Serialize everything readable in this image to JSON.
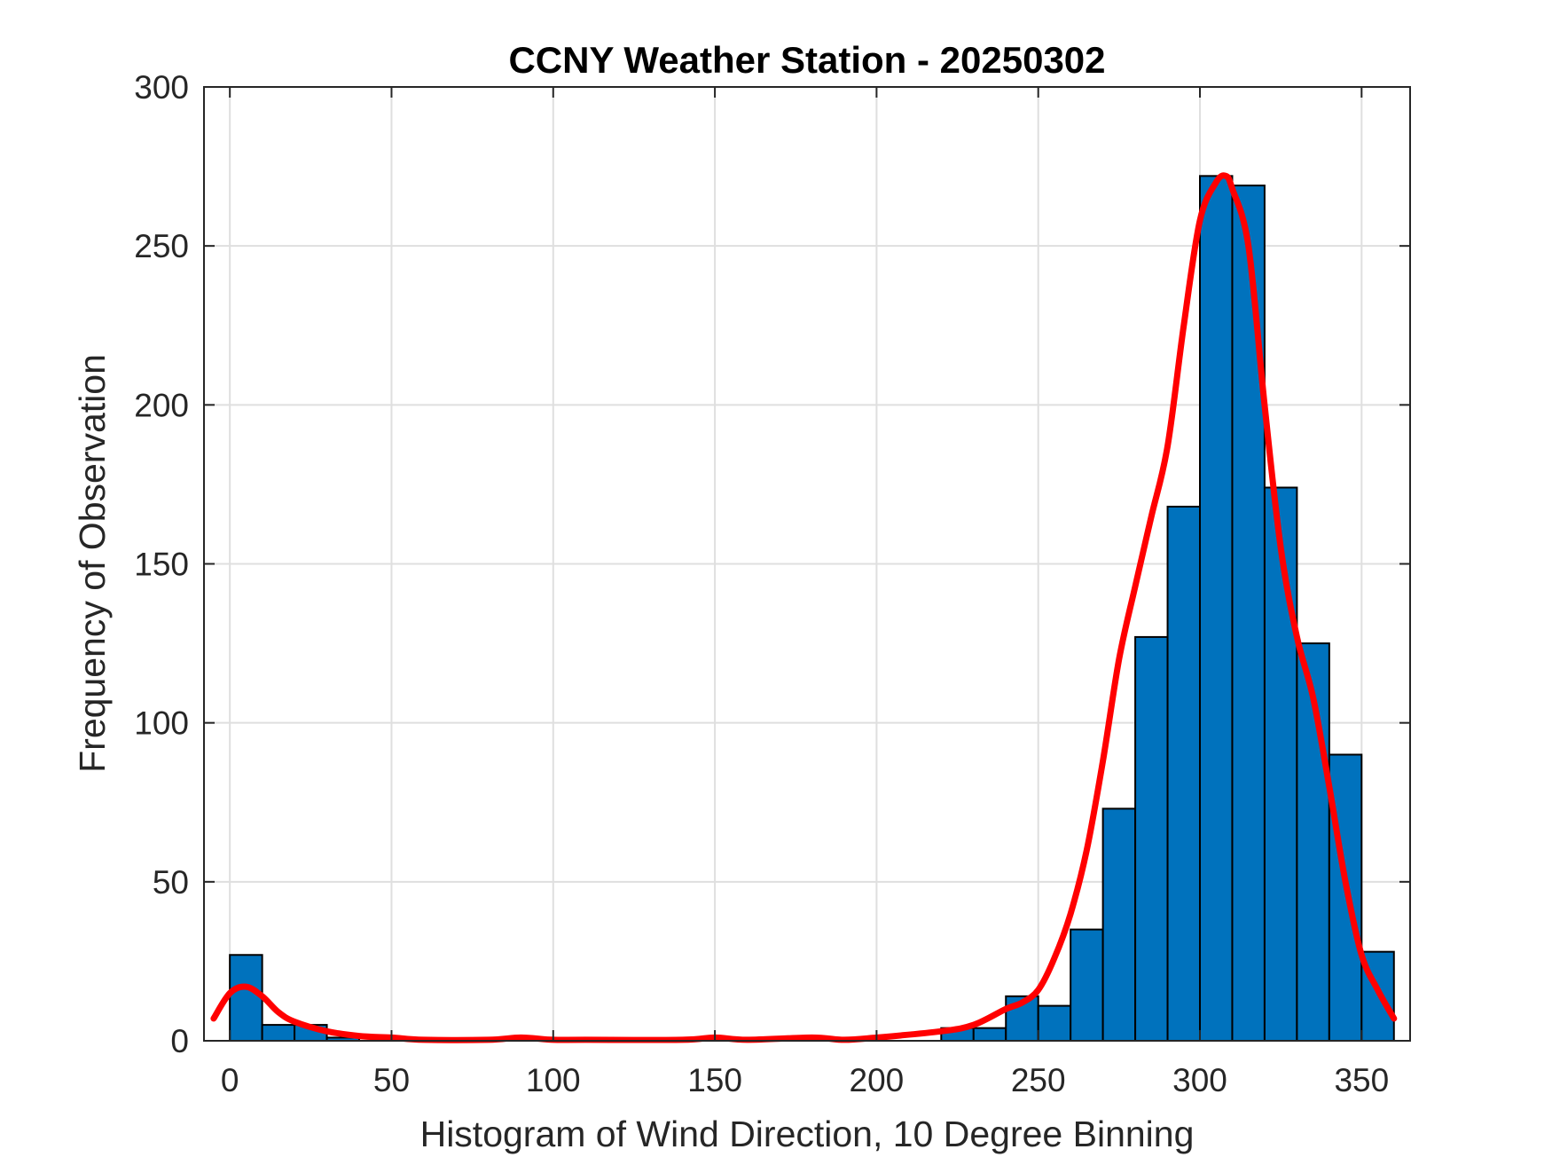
{
  "chart_data": {
    "type": "bar",
    "title": "CCNY Weather Station - 20250302",
    "xlabel": "Histogram of Wind Direction, 10 Degree Binning",
    "ylabel": "Frequency of Observation",
    "xlim": [
      -8,
      365
    ],
    "ylim": [
      0,
      300
    ],
    "xticks": [
      0,
      50,
      100,
      150,
      200,
      250,
      300,
      350
    ],
    "yticks": [
      0,
      50,
      100,
      150,
      200,
      250,
      300
    ],
    "grid": true,
    "bin_width": 10,
    "bins": [
      {
        "start": 0,
        "count": 27
      },
      {
        "start": 10,
        "count": 5
      },
      {
        "start": 20,
        "count": 5
      },
      {
        "start": 30,
        "count": 1
      },
      {
        "start": 220,
        "count": 4
      },
      {
        "start": 230,
        "count": 4
      },
      {
        "start": 240,
        "count": 14
      },
      {
        "start": 250,
        "count": 11
      },
      {
        "start": 260,
        "count": 35
      },
      {
        "start": 270,
        "count": 73
      },
      {
        "start": 280,
        "count": 127
      },
      {
        "start": 290,
        "count": 168
      },
      {
        "start": 300,
        "count": 272
      },
      {
        "start": 310,
        "count": 269
      },
      {
        "start": 320,
        "count": 174
      },
      {
        "start": 330,
        "count": 125
      },
      {
        "start": 340,
        "count": 90
      },
      {
        "start": 350,
        "count": 28
      }
    ],
    "density_curve": {
      "name": "smoothed fit",
      "x": [
        -5,
        0,
        5,
        10,
        15,
        20,
        30,
        40,
        50,
        60,
        80,
        90,
        100,
        110,
        140,
        150,
        160,
        180,
        190,
        200,
        220,
        230,
        240,
        245,
        250,
        255,
        260,
        265,
        270,
        275,
        280,
        285,
        290,
        295,
        300,
        305,
        308,
        310,
        315,
        320,
        325,
        330,
        335,
        340,
        345,
        350,
        355,
        360
      ],
      "y": [
        7,
        15,
        17,
        14,
        9,
        6,
        3,
        1.5,
        1,
        0.3,
        0.3,
        1,
        0.3,
        0.3,
        0.3,
        1,
        0.3,
        1,
        0.3,
        1,
        3,
        5,
        10,
        12,
        16,
        26,
        40,
        60,
        88,
        120,
        143,
        165,
        187,
        225,
        258,
        270,
        272,
        268,
        250,
        200,
        155,
        127,
        108,
        80,
        50,
        27,
        16,
        7
      ]
    },
    "colors": {
      "bar_fill": "#0072BD",
      "bar_edge": "#000000",
      "curve": "#FF0000",
      "grid": "#DFDFDF",
      "axes": "#262626"
    }
  }
}
